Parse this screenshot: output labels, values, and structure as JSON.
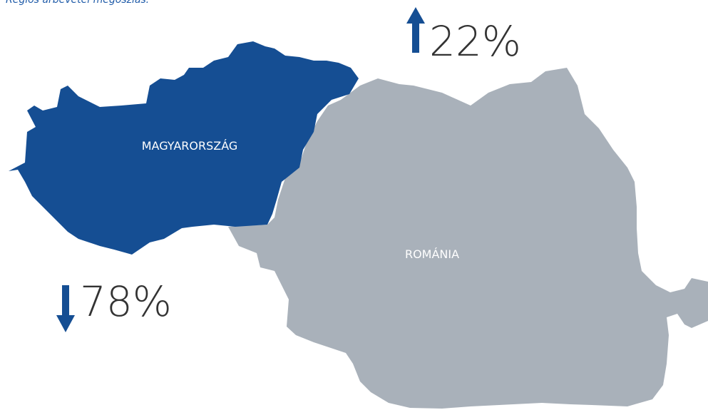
{
  "title": "Régiós árbevétel megoszlás:",
  "regions": [
    {
      "label": "MAGYARORSZÁG",
      "change": "78%"
    },
    {
      "label": "ROMÁNIA",
      "change": "22%"
    }
  ]
}
